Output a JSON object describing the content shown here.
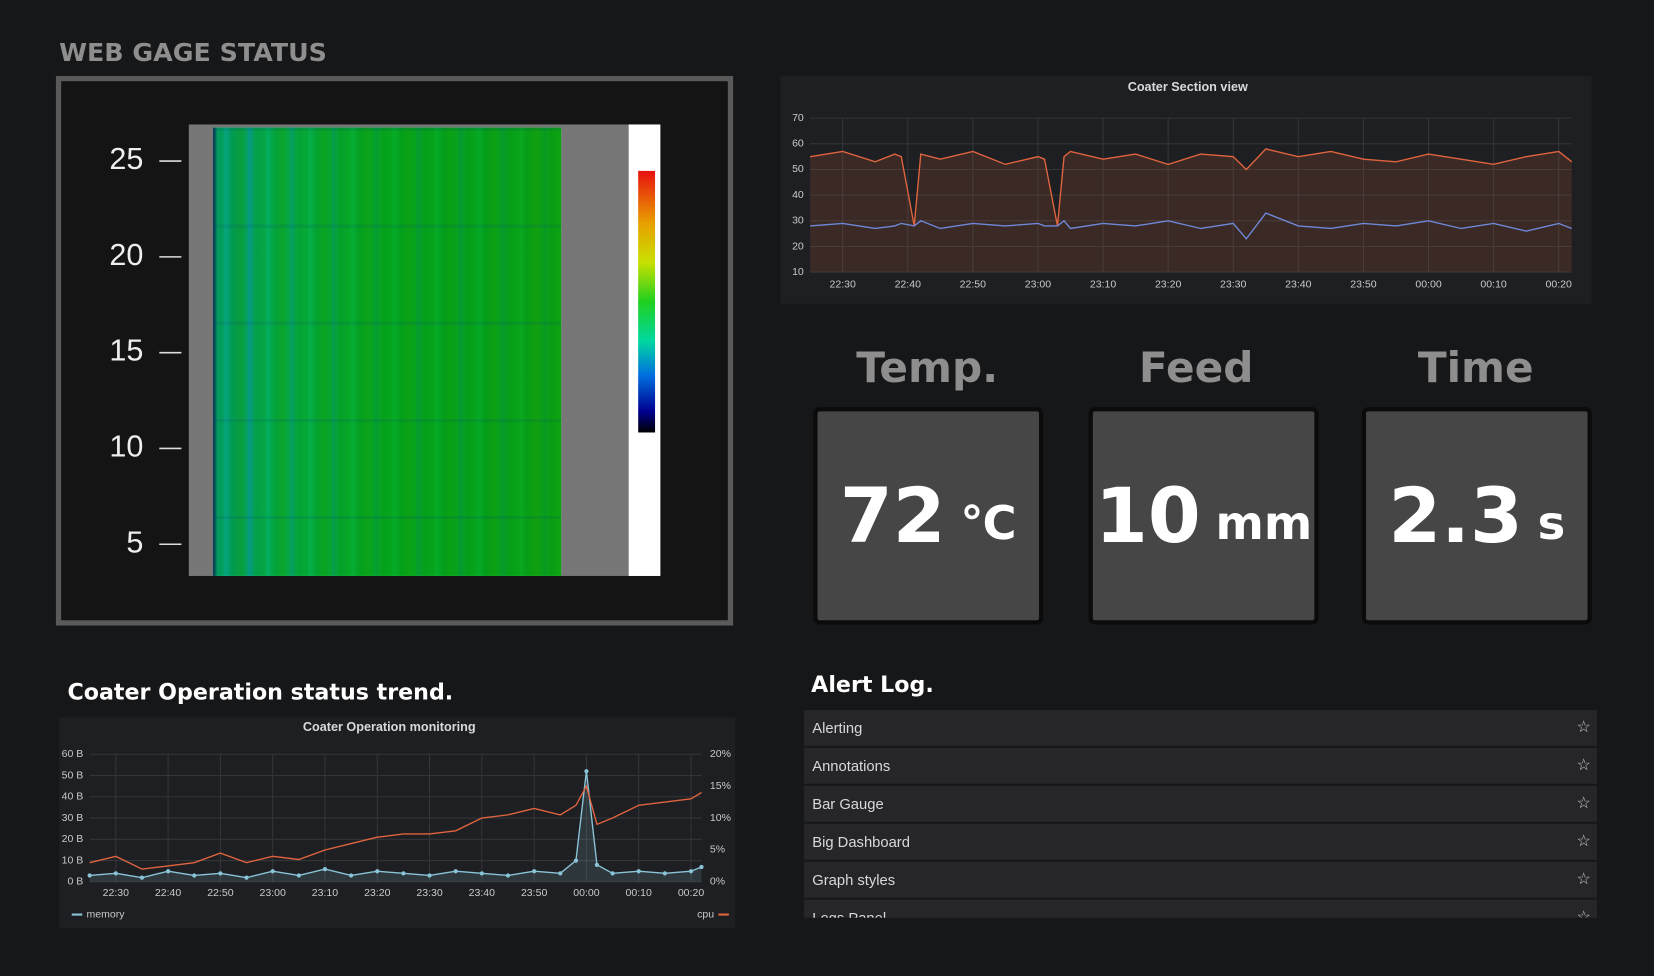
{
  "header": {
    "title": "WEB GAGE STATUS"
  },
  "heatmap": {
    "ylim": [
      3.4,
      26.8
    ],
    "yticks": [
      5,
      10,
      15,
      20,
      25
    ]
  },
  "section_chart": {
    "type": "line",
    "title": "Coater Section view",
    "x": [
      "22:25",
      "22:30",
      "22:35",
      "22:38",
      "22:39",
      "22:41",
      "22:42",
      "22:45",
      "22:50",
      "22:55",
      "23:00",
      "23:01",
      "23:03",
      "23:04",
      "23:05",
      "23:10",
      "23:15",
      "23:20",
      "23:25",
      "23:30",
      "23:32",
      "23:35",
      "23:40",
      "23:45",
      "23:50",
      "23:55",
      "00:00",
      "00:05",
      "00:10",
      "00:15",
      "00:20",
      "00:22"
    ],
    "xticks": [
      "22:30",
      "22:40",
      "22:50",
      "23:00",
      "23:10",
      "23:20",
      "23:30",
      "23:40",
      "23:50",
      "00:00",
      "00:10",
      "00:20"
    ],
    "ylim": [
      10,
      70
    ],
    "yticks": [
      10,
      20,
      30,
      40,
      50,
      60,
      70
    ],
    "grid": true,
    "series": [
      {
        "color": "#e0643f",
        "fill": true,
        "values": [
          55,
          57,
          53,
          56,
          55,
          28,
          56,
          54,
          57,
          52,
          55,
          54,
          28,
          55,
          57,
          54,
          56,
          52,
          56,
          55,
          50,
          58,
          55,
          57,
          54,
          53,
          56,
          54,
          52,
          55,
          57,
          53
        ]
      },
      {
        "color": "#6e88d8",
        "values": [
          28,
          29,
          27,
          28,
          29,
          28,
          30,
          27,
          29,
          28,
          29,
          28,
          28,
          30,
          27,
          29,
          28,
          30,
          27,
          29,
          23,
          33,
          28,
          27,
          29,
          28,
          30,
          27,
          29,
          26,
          29,
          27
        ]
      }
    ]
  },
  "stats": [
    {
      "label": "Temp.",
      "value": 72,
      "unit": "℃"
    },
    {
      "label": "Feed",
      "value": 10,
      "unit": "mm"
    },
    {
      "label": "Time",
      "value": 2.3,
      "unit": "s"
    }
  ],
  "trend": {
    "heading": "Coater Operation status trend."
  },
  "trend_chart": {
    "type": "line",
    "title": "Coater Operation monitoring",
    "x": [
      "22:25",
      "22:30",
      "22:35",
      "22:40",
      "22:45",
      "22:50",
      "22:55",
      "23:00",
      "23:05",
      "23:10",
      "23:15",
      "23:20",
      "23:25",
      "23:30",
      "23:35",
      "23:40",
      "23:45",
      "23:50",
      "23:55",
      "23:58",
      "00:00",
      "00:02",
      "00:05",
      "00:10",
      "00:15",
      "00:20",
      "00:22"
    ],
    "xticks": [
      "22:30",
      "22:40",
      "22:50",
      "23:00",
      "23:10",
      "23:20",
      "23:30",
      "23:40",
      "23:50",
      "00:00",
      "00:10",
      "00:20"
    ],
    "ylim": [
      0,
      60
    ],
    "yticks": [
      {
        "value": 0,
        "label": "0 B"
      },
      {
        "value": 10,
        "label": "10 B"
      },
      {
        "value": 20,
        "label": "20 B"
      },
      {
        "value": 30,
        "label": "30 B"
      },
      {
        "value": 40,
        "label": "40 B"
      },
      {
        "value": 50,
        "label": "50 B"
      },
      {
        "value": 60,
        "label": "60 B"
      }
    ],
    "y2lim": [
      0,
      20
    ],
    "y2ticks": [
      {
        "value": 0,
        "label": "0%"
      },
      {
        "value": 5,
        "label": "5%"
      },
      {
        "value": 10,
        "label": "10%"
      },
      {
        "value": 15,
        "label": "15%"
      },
      {
        "value": 20,
        "label": "20%"
      }
    ],
    "grid": true,
    "series": [
      {
        "name": "memory",
        "color": "#8ac4d8",
        "fill": true,
        "points": true,
        "values": [
          3,
          4,
          2,
          5,
          3,
          4,
          2,
          5,
          3,
          6,
          3,
          5,
          4,
          3,
          5,
          4,
          3,
          5,
          4,
          10,
          52,
          8,
          4,
          5,
          4,
          5,
          7
        ]
      },
      {
        "name": "cpu",
        "color": "#e0643f",
        "axis": "y2",
        "values": [
          3,
          4,
          2,
          2.5,
          3,
          4.5,
          3,
          4,
          3.5,
          5,
          6,
          7,
          7.5,
          7.5,
          8,
          10,
          10.5,
          11.5,
          10.5,
          12,
          15,
          9,
          10,
          12,
          12.5,
          13,
          14
        ]
      }
    ]
  },
  "alert_log": {
    "title": "Alert Log.",
    "items": [
      "Alerting",
      "Annotations",
      "Bar Gauge",
      "Big Dashboard",
      "Graph styles",
      "Logs Panel"
    ]
  }
}
